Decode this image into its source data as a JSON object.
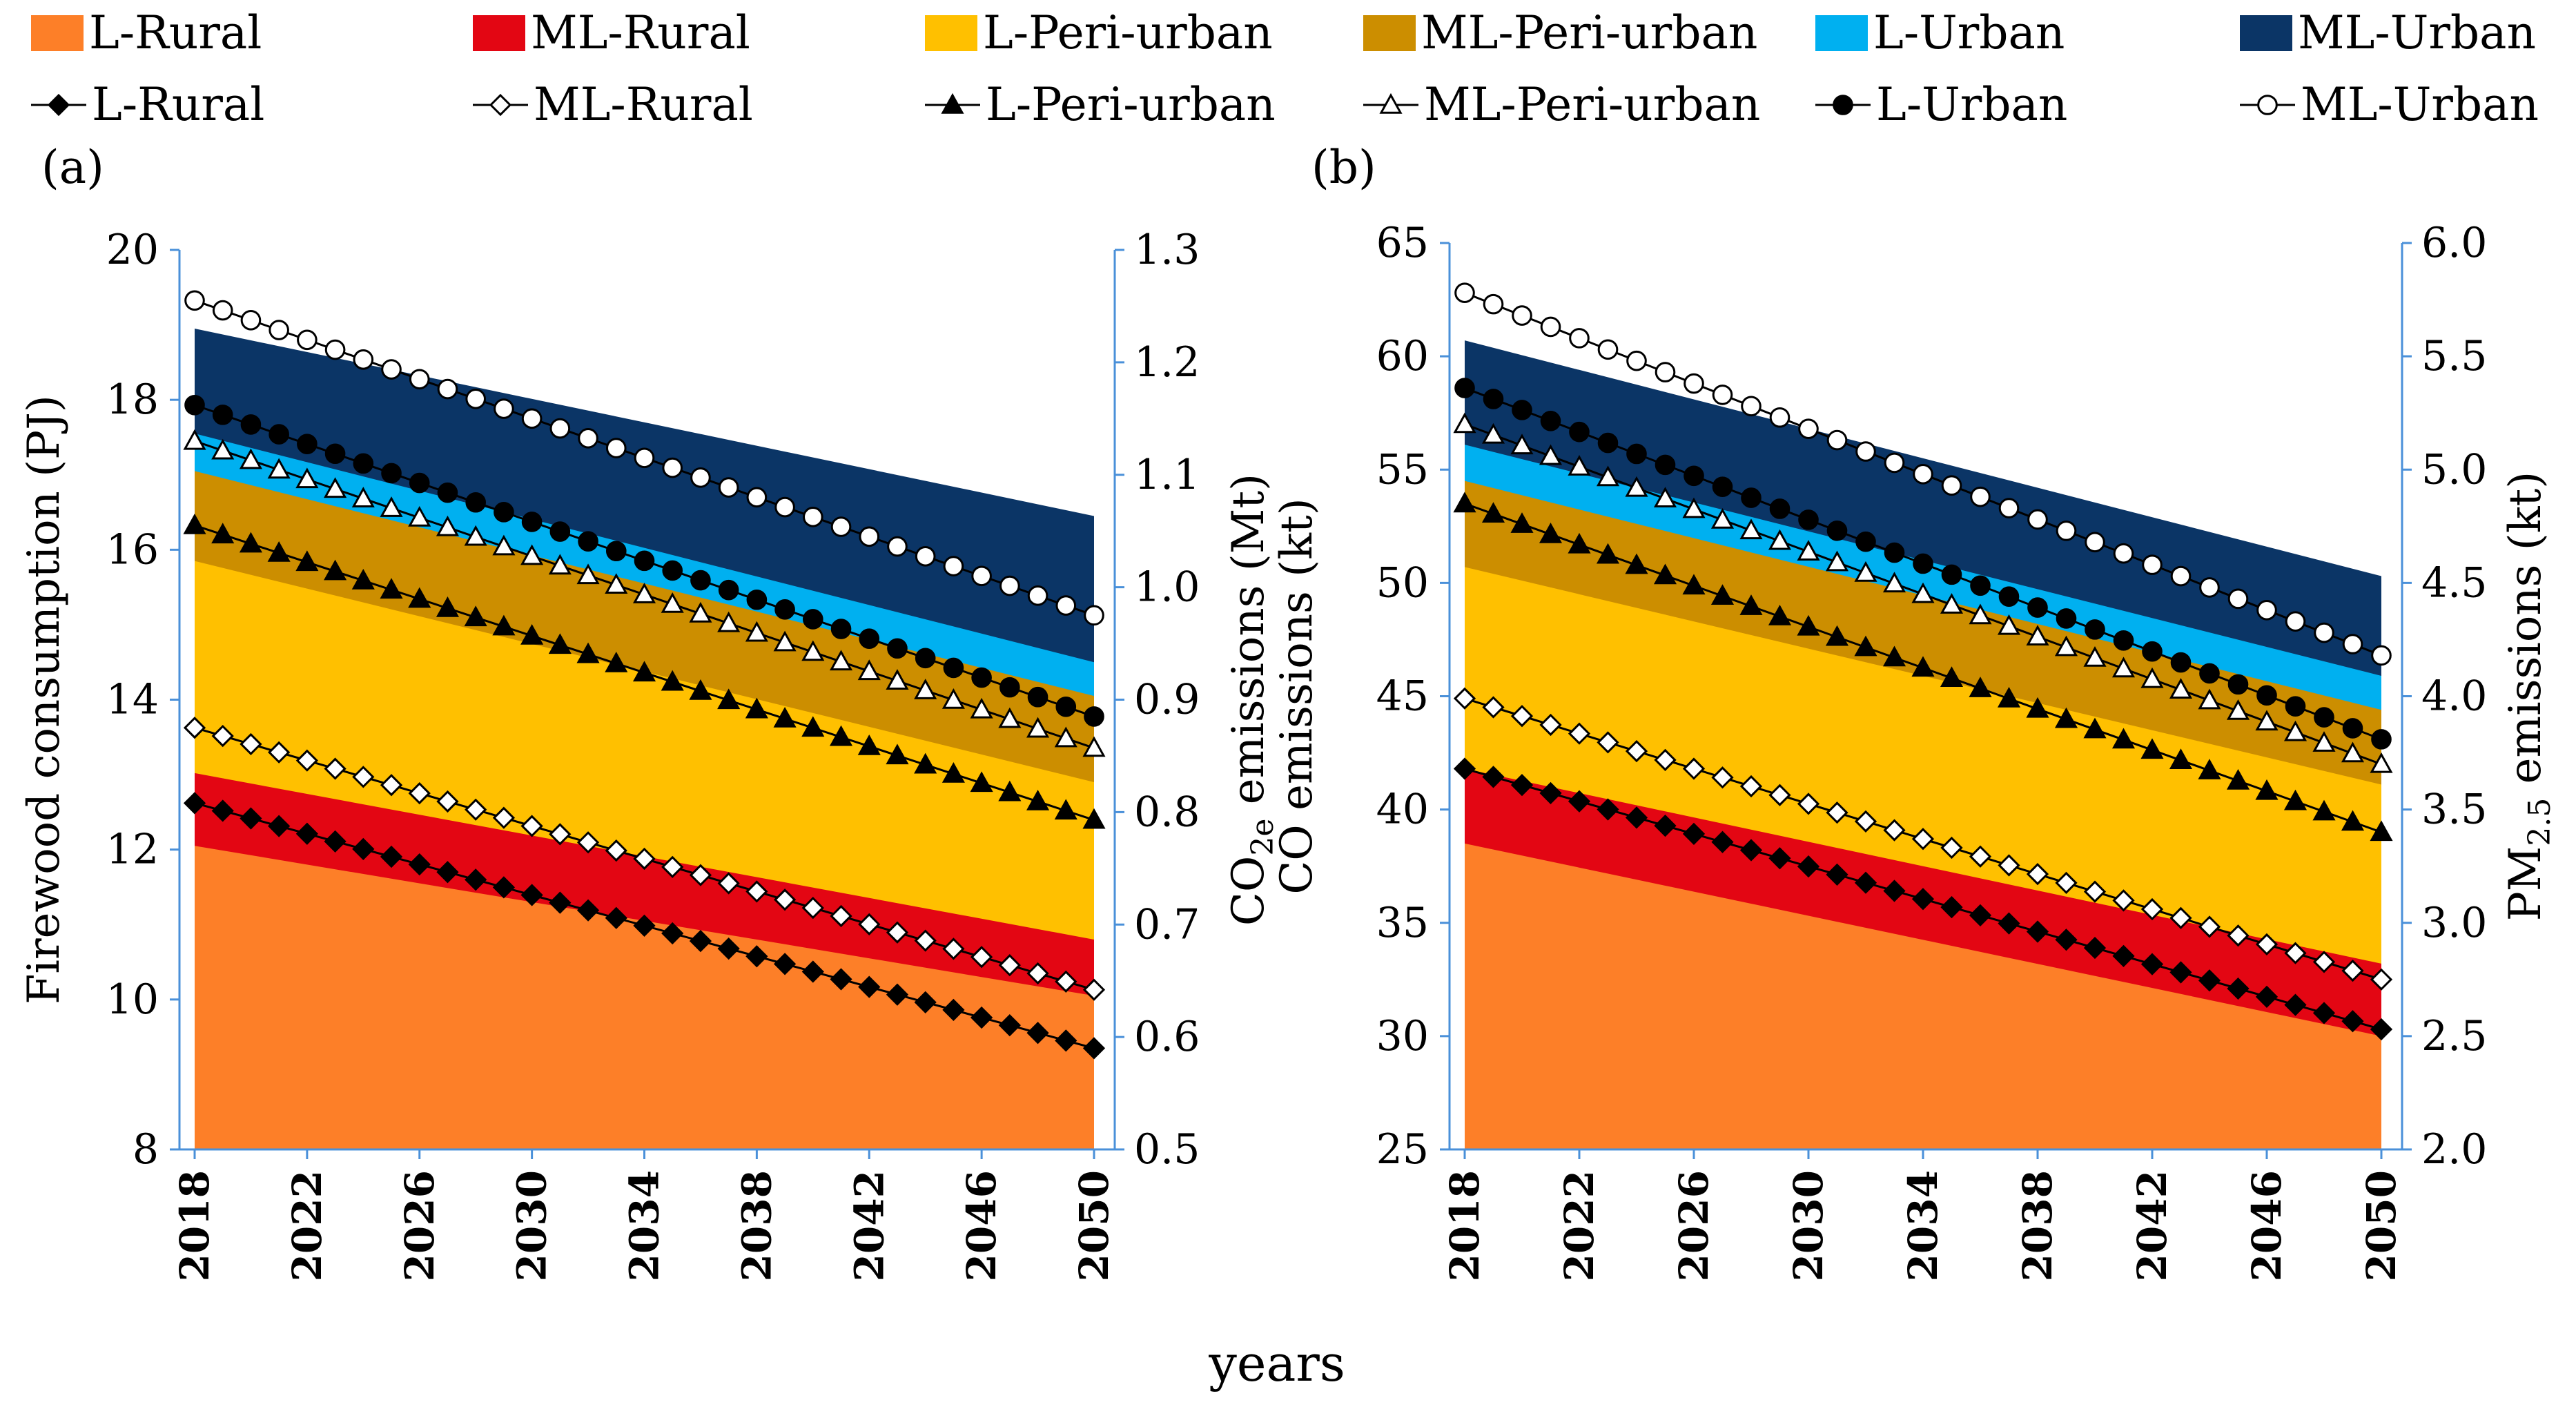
{
  "chart_data": {
    "type": "area",
    "description_text": {
      "xlabel": "years"
    },
    "legend": {
      "areas": [
        {
          "name": "L-Rural",
          "color": "#fd7f28"
        },
        {
          "name": "ML-Rural",
          "color": "#e30613"
        },
        {
          "name": "L-Peri-urban",
          "color": "#ffc000"
        },
        {
          "name": "ML-Peri-urban",
          "color": "#cc8e00"
        },
        {
          "name": "L-Urban",
          "color": "#00b0f0"
        },
        {
          "name": "ML-Urban",
          "color": "#0b3566"
        }
      ],
      "lines": [
        {
          "name": "L-Rural",
          "marker": "diamond-filled"
        },
        {
          "name": "ML-Rural",
          "marker": "diamond-open"
        },
        {
          "name": "L-Peri-urban",
          "marker": "triangle-filled"
        },
        {
          "name": "ML-Peri-urban",
          "marker": "triangle-open"
        },
        {
          "name": "L-Urban",
          "marker": "circle-filled"
        },
        {
          "name": "ML-Urban",
          "marker": "circle-open"
        }
      ]
    },
    "x_ticks": [
      "2018",
      "2022",
      "2026",
      "2030",
      "2034",
      "2038",
      "2042",
      "2046",
      "2050"
    ],
    "panels": [
      {
        "label": "(a)",
        "ylabel_left": "Firewood consumption (PJ)",
        "ylabel_right": [
          "CO",
          "2e",
          " emissions (Mt)"
        ],
        "ylim_left": [
          8,
          20
        ],
        "yticks_left": [
          "8",
          "10",
          "12",
          "14",
          "16",
          "18",
          "20"
        ],
        "ylim_right": [
          0.5,
          1.3
        ],
        "yticks_right": [
          "0.5",
          "0.6",
          "0.7",
          "0.8",
          "0.9",
          "1.0",
          "1.1",
          "1.2",
          "1.3"
        ],
        "x_range": [
          2018,
          2050
        ],
        "stacked_cumulative_left_axis": {
          "start_2018": [
            12.05,
            13.02,
            15.85,
            17.05,
            17.55,
            18.95
          ],
          "end_2050": [
            10.05,
            10.8,
            12.9,
            14.05,
            14.5,
            16.45
          ]
        },
        "series_right_axis": [
          {
            "name": "L-Rural",
            "start": 0.808,
            "end": 0.59
          },
          {
            "name": "ML-Rural",
            "start": 0.875,
            "end": 0.642
          },
          {
            "name": "L-Peri-urban",
            "start": 1.055,
            "end": 0.793
          },
          {
            "name": "ML-Peri-urban",
            "start": 1.13,
            "end": 0.857
          },
          {
            "name": "L-Urban",
            "start": 1.162,
            "end": 0.885
          },
          {
            "name": "ML-Urban",
            "start": 1.255,
            "end": 0.975
          }
        ]
      },
      {
        "label": "(b)",
        "ylabel_left": "CO emissions (kt)",
        "ylabel_right": [
          "PM",
          "2.5",
          " emissions (kt)"
        ],
        "ylim_left": [
          25,
          65
        ],
        "yticks_left": [
          "25",
          "30",
          "35",
          "40",
          "45",
          "50",
          "55",
          "60",
          "65"
        ],
        "ylim_right": [
          2.0,
          6.0
        ],
        "yticks_right": [
          "2.0",
          "2.5",
          "3.0",
          "3.5",
          "4.0",
          "4.5",
          "5.0",
          "5.5",
          "6.0"
        ],
        "x_range": [
          2018,
          2050
        ],
        "stacked_cumulative_left_axis": {
          "start_2018": [
            38.5,
            41.8,
            50.7,
            54.5,
            56.1,
            60.7
          ],
          "end_2050": [
            30.0,
            33.2,
            41.1,
            44.4,
            45.9,
            50.3
          ]
        },
        "series_right_axis": [
          {
            "name": "L-Rural",
            "start": 3.68,
            "end": 2.53
          },
          {
            "name": "ML-Rural",
            "start": 3.99,
            "end": 2.75
          },
          {
            "name": "L-Peri-urban",
            "start": 4.85,
            "end": 3.4
          },
          {
            "name": "ML-Peri-urban",
            "start": 5.2,
            "end": 3.7
          },
          {
            "name": "L-Urban",
            "start": 5.36,
            "end": 3.81
          },
          {
            "name": "ML-Urban",
            "start": 5.78,
            "end": 4.18
          }
        ]
      }
    ]
  }
}
